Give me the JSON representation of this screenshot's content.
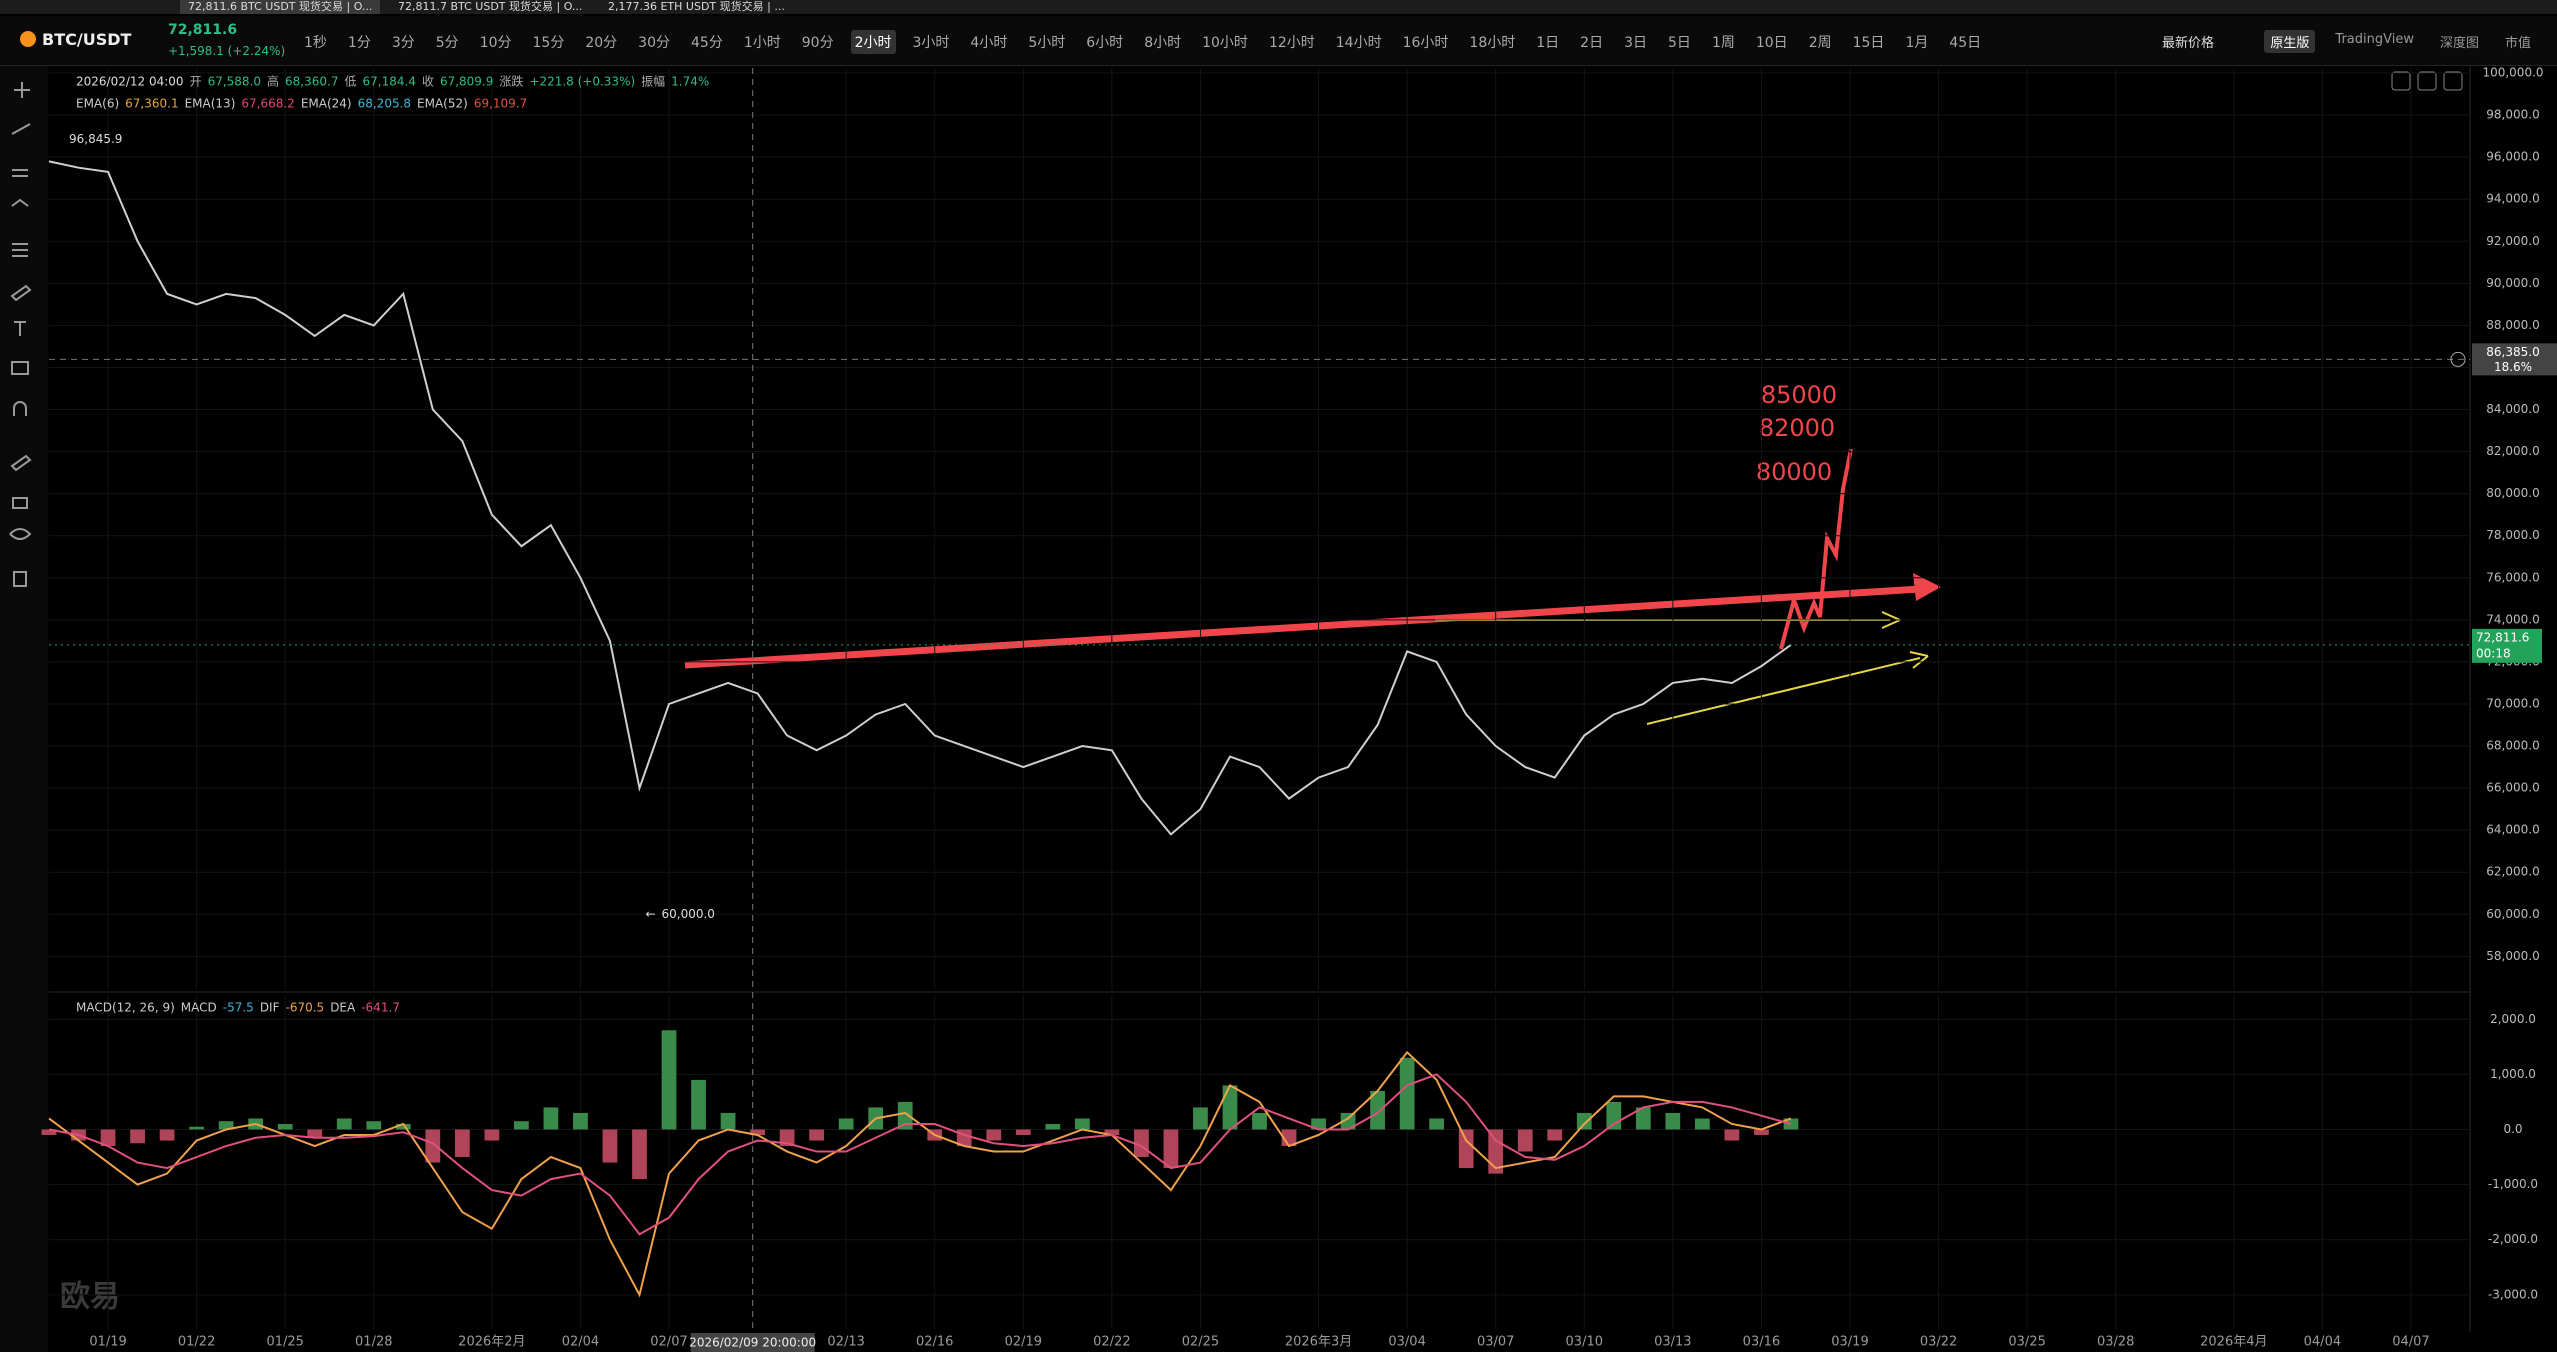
{
  "browser_tabs": [
    "72,811.6 BTC USDT 现货交易 | O...",
    "72,811.7 BTC USDT 现货交易 | O...",
    "2,177.36 ETH USDT 现货交易 | ..."
  ],
  "header": {
    "symbol": "BTC/USDT",
    "last_price": "72,811.6",
    "change": "+1,598.1 (+2.24%)",
    "intervals": [
      "1秒",
      "1分",
      "3分",
      "5分",
      "10分",
      "15分",
      "20分",
      "30分",
      "45分",
      "1小时",
      "90分",
      "2小时",
      "3小时",
      "4小时",
      "5小时",
      "6小时",
      "8小时",
      "10小时",
      "12小时",
      "14小时",
      "16小时",
      "18小时",
      "1日",
      "2日",
      "3日",
      "5日",
      "1周",
      "10日",
      "2周",
      "15日",
      "1月",
      "45日"
    ],
    "selected_interval": 11,
    "price_mode": "最新价格",
    "views": [
      "原生版",
      "TradingView",
      "深度图",
      "市值"
    ],
    "selected_view": 0
  },
  "watermark": "欧易",
  "chart_data": [
    {
      "type": "line",
      "color": "#cfcfcf",
      "grid": true,
      "ohlc_time": "2026/02/12 04:00",
      "ohlc": [
        {
          "label": "开",
          "value": "67,588.0"
        },
        {
          "label": "高",
          "value": "68,360.7"
        },
        {
          "label": "低",
          "value": "67,184.4"
        },
        {
          "label": "收",
          "value": "67,809.9"
        },
        {
          "label": "涨跌",
          "value": "+221.8 (+0.33%)"
        },
        {
          "label": "振幅",
          "value": "1.74%"
        }
      ],
      "indicators": [
        {
          "name": "EMA(6)",
          "value": "67,360.1",
          "color": "#e8a33d"
        },
        {
          "name": "EMA(13)",
          "value": "67,668.2",
          "color": "#e0457b"
        },
        {
          "name": "EMA(24)",
          "value": "68,205.8",
          "color": "#3fb6d8"
        },
        {
          "name": "EMA(52)",
          "value": "69,109.7",
          "color": "#e0533d"
        }
      ],
      "x": [
        "01/17",
        "01/18",
        "01/19",
        "01/20",
        "01/21",
        "01/22",
        "01/23",
        "01/24",
        "01/25",
        "01/26",
        "01/27",
        "01/28",
        "01/29",
        "01/30",
        "01/31",
        "02/01",
        "02/02",
        "02/03",
        "02/04",
        "02/05",
        "02/06",
        "02/07",
        "02/08",
        "02/09",
        "02/10",
        "02/11",
        "02/12",
        "02/13",
        "02/14",
        "02/15",
        "02/16",
        "02/17",
        "02/18",
        "02/19",
        "02/20",
        "02/21",
        "02/22",
        "02/23",
        "02/24",
        "02/25",
        "02/26",
        "02/27",
        "02/28",
        "03/01",
        "03/02",
        "03/03",
        "03/04",
        "03/05",
        "03/06",
        "03/07",
        "03/08",
        "03/09",
        "03/10",
        "03/11",
        "03/12",
        "03/13",
        "03/14",
        "03/15",
        "03/16",
        "03/17"
      ],
      "values": [
        95800,
        95500,
        95300,
        92000,
        89500,
        89000,
        89500,
        89300,
        88500,
        87500,
        88500,
        88000,
        89500,
        84000,
        82500,
        79000,
        77500,
        78500,
        76000,
        73000,
        66000,
        70000,
        70500,
        71000,
        70500,
        68500,
        67800,
        68500,
        69500,
        70000,
        68500,
        68000,
        67500,
        67000,
        67500,
        68000,
        67800,
        65500,
        63800,
        65000,
        67500,
        67000,
        65500,
        66500,
        67000,
        69000,
        72500,
        72000,
        69500,
        68000,
        67000,
        66500,
        68500,
        69500,
        70000,
        71000,
        71200,
        71000,
        71800,
        72811.6
      ],
      "xlim": [
        "01/17",
        "04/09"
      ],
      "xticks": [
        "01/19",
        "01/22",
        "01/25",
        "01/28",
        {
          "value": "02/01",
          "label": "2026年2月"
        },
        "02/04",
        "02/07",
        "02/13",
        "02/16",
        "02/19",
        "02/22",
        "02/25",
        {
          "value": "03/01",
          "label": "2026年3月"
        },
        "03/04",
        "03/07",
        "03/10",
        "03/13",
        "03/16",
        "03/19",
        "03/22",
        "03/25",
        "03/28",
        {
          "value": "04/01",
          "label": "2026年4月"
        },
        "04/04",
        "04/07"
      ],
      "ylim": [
        56400,
        100240
      ],
      "yticks": [
        {
          "value": 58000,
          "label": "58,000.0"
        },
        {
          "value": 60000,
          "label": "60,000.0"
        },
        {
          "value": 62000,
          "label": "62,000.0"
        },
        {
          "value": 64000,
          "label": "64,000.0"
        },
        {
          "value": 66000,
          "label": "66,000.0"
        },
        {
          "value": 68000,
          "label": "68,000.0"
        },
        {
          "value": 70000,
          "label": "70,000.0"
        },
        {
          "value": 72000,
          "label": "72,000.0"
        },
        {
          "value": 74000,
          "label": "74,000.0"
        },
        {
          "value": 76000,
          "label": "76,000.0"
        },
        {
          "value": 78000,
          "label": "78,000.0"
        },
        {
          "value": 80000,
          "label": "80,000.0"
        },
        {
          "value": 82000,
          "label": "82,000.0"
        },
        {
          "value": 84000,
          "label": "84,000.0"
        },
        {
          "value": 86000,
          "label": "86,000.0"
        },
        {
          "value": 88000,
          "label": "88,000.0"
        },
        {
          "value": 90000,
          "label": "90,000.0"
        },
        {
          "value": 92000,
          "label": "92,000.0"
        },
        {
          "value": 94000,
          "label": "94,000.0"
        },
        {
          "value": 96000,
          "label": "96,000.0"
        },
        {
          "value": 98000,
          "label": "98,000.0"
        },
        {
          "value": 100000,
          "label": "100,000.0"
        }
      ],
      "high_marker": {
        "value": 96845.9,
        "label": "96,845.9",
        "x": "01/17"
      },
      "low_marker": {
        "value": 60000,
        "label": "60,000.0",
        "x": "02/06"
      },
      "last_price_marker": {
        "value": 72811.6,
        "label": "72,811.6",
        "countdown": "00:18",
        "color": "#21a35a"
      },
      "crosshair": {
        "time": "2026/02/09 20:00:00",
        "price": {
          "value": 86385,
          "label": "86,385.0"
        },
        "percent": "18.6%"
      },
      "annotations": [
        "85000",
        "82000",
        "80000"
      ]
    },
    {
      "type": "macd",
      "title": "MACD(12, 26, 9)",
      "ylim": [
        -3620,
        2440
      ],
      "yticks": [
        {
          "value": -3000,
          "label": "-3,000.0"
        },
        {
          "value": -2000,
          "label": "-2,000.0"
        },
        {
          "value": -1000,
          "label": "-1,000.0"
        },
        {
          "value": 0,
          "label": "0.0"
        },
        {
          "value": 1000,
          "label": "1,000.0"
        },
        {
          "value": 2000,
          "label": "2,000.0"
        }
      ],
      "series": [
        {
          "name": "MACD",
          "kind": "bar",
          "last": "-57.5",
          "up_color": "#3a8a4a",
          "down_color": "#b0455a",
          "values": [
            -100,
            -200,
            -300,
            -250,
            -200,
            50,
            150,
            200,
            100,
            -150,
            200,
            150,
            100,
            -600,
            -500,
            -200,
            150,
            400,
            300,
            -600,
            -900,
            1800,
            900,
            300,
            -100,
            -300,
            -200,
            200,
            400,
            500,
            -200,
            -300,
            -200,
            -100,
            100,
            200,
            -100,
            -500,
            -700,
            400,
            800,
            300,
            -300,
            200,
            300,
            700,
            1300,
            200,
            -700,
            -800,
            -400,
            -200,
            300,
            500,
            400,
            300,
            200,
            -200,
            -100,
            200
          ]
        },
        {
          "name": "DIF",
          "kind": "line",
          "last": "-670.5",
          "color": "#f0a14a",
          "values": [
            200,
            -200,
            -600,
            -1000,
            -800,
            -200,
            0,
            100,
            -100,
            -300,
            -100,
            -100,
            100,
            -700,
            -1500,
            -1800,
            -900,
            -500,
            -700,
            -2000,
            -3000,
            -800,
            -200,
            0,
            -100,
            -400,
            -600,
            -300,
            200,
            300,
            -100,
            -300,
            -400,
            -400,
            -200,
            0,
            -100,
            -600,
            -1100,
            -300,
            800,
            500,
            -300,
            -100,
            200,
            700,
            1400,
            900,
            -200,
            -700,
            -600,
            -500,
            100,
            600,
            600,
            500,
            400,
            100,
            0,
            200
          ]
        },
        {
          "name": "DEA",
          "kind": "line",
          "last": "-641.7",
          "color": "#e0507e",
          "values": [
            0,
            -100,
            -300,
            -600,
            -700,
            -500,
            -300,
            -150,
            -100,
            -150,
            -150,
            -120,
            -50,
            -250,
            -700,
            -1100,
            -1200,
            -900,
            -800,
            -1200,
            -1900,
            -1600,
            -900,
            -400,
            -200,
            -250,
            -400,
            -400,
            -150,
            100,
            100,
            -100,
            -250,
            -300,
            -250,
            -150,
            -100,
            -300,
            -700,
            -600,
            0,
            400,
            200,
            0,
            0,
            300,
            800,
            1000,
            500,
            -200,
            -500,
            -550,
            -300,
            100,
            400,
            500,
            500,
            400,
            250,
            100
          ]
        }
      ]
    }
  ]
}
